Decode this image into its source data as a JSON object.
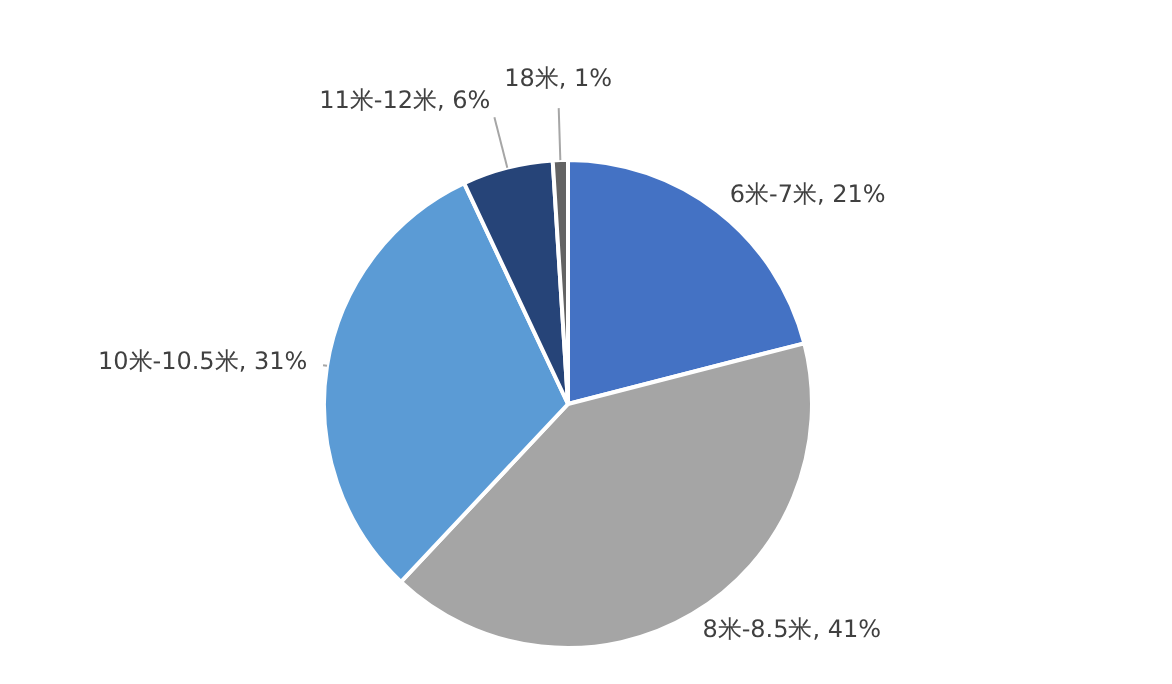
{
  "chart_data": {
    "type": "pie",
    "categories": [
      "6米-7米",
      "8米-8.5米",
      "10米-10.5米",
      "11米-12米",
      "18米"
    ],
    "values": [
      21,
      41,
      31,
      6,
      1
    ],
    "value_labels": [
      "21%",
      "41%",
      "31%",
      "6%",
      "1%"
    ],
    "colors": [
      "#4472c4",
      "#a5a5a5",
      "#5b9bd5",
      "#264478",
      "#636363"
    ],
    "legend": false
  }
}
